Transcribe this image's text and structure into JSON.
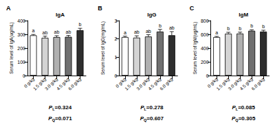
{
  "chart_data": [
    {
      "type": "bar",
      "panel": "A",
      "title": "IgA",
      "y_label": "Serum level of IgA(ug/mL)",
      "categories": [
        "0 g/kg",
        "1.5 g/kg",
        "3.0 g/kg",
        "4.5 g/kg",
        "6.0 g/kg"
      ],
      "values": [
        293,
        275,
        280,
        282,
        330
      ],
      "errors": [
        6,
        12,
        10,
        10,
        14
      ],
      "letters": [
        "a",
        "ab",
        "ab",
        "ab",
        "b"
      ],
      "colors": [
        "#ffffff",
        "#d4d4d4",
        "#b0b0b0",
        "#707070",
        "#2e2e2e"
      ],
      "ylim": [
        0,
        400
      ],
      "yticks": [
        0,
        100,
        200,
        300,
        400
      ],
      "annotations": [
        {
          "symbol": "P",
          "subscript": "L",
          "text": "=0.324"
        },
        {
          "symbol": "P",
          "subscript": "Q",
          "text": "=0.071"
        }
      ]
    },
    {
      "type": "bar",
      "panel": "B",
      "title": "IgG",
      "y_label": "Serum level of IgG(mg/mL)",
      "categories": [
        "0 g/kg",
        "1.5 g/kg",
        "3.0 g/kg",
        "4.5 g/kg",
        "6.0 g/kg"
      ],
      "values": [
        2.1,
        2.07,
        2.13,
        2.4,
        2.2
      ],
      "errors": [
        0.05,
        0.1,
        0.1,
        0.12,
        0.2
      ],
      "letters": [
        "a",
        "ab",
        "ab",
        "b",
        "ab"
      ],
      "colors": [
        "#ffffff",
        "#d4d4d4",
        "#b0b0b0",
        "#707070",
        "#2e2e2e"
      ],
      "ylim": [
        0,
        3
      ],
      "yticks": [
        0,
        1,
        2,
        3
      ],
      "annotations": [
        {
          "symbol": "P",
          "subscript": "L",
          "text": "=0.278"
        },
        {
          "symbol": "P",
          "subscript": "Q",
          "text": "=0.607"
        }
      ]
    },
    {
      "type": "bar",
      "panel": "C",
      "title": "IgM",
      "y_label": "Serum level of IgM(ug/mL)",
      "categories": [
        "0 g/kg",
        "1.5 g/kg",
        "3.0 g/kg",
        "4.5 g/kg",
        "6.0 g/kg"
      ],
      "values": [
        560,
        610,
        612,
        652,
        640
      ],
      "errors": [
        10,
        20,
        20,
        14,
        20
      ],
      "letters": [
        "a",
        "b",
        "b",
        "b",
        "b"
      ],
      "colors": [
        "#ffffff",
        "#d4d4d4",
        "#b0b0b0",
        "#707070",
        "#2e2e2e"
      ],
      "ylim": [
        0,
        800
      ],
      "yticks": [
        0,
        200,
        400,
        600,
        800
      ],
      "annotations": [
        {
          "symbol": "P",
          "subscript": "L",
          "text": "=0.085"
        },
        {
          "symbol": "P",
          "subscript": "Q",
          "text": "=0.305"
        }
      ]
    }
  ]
}
